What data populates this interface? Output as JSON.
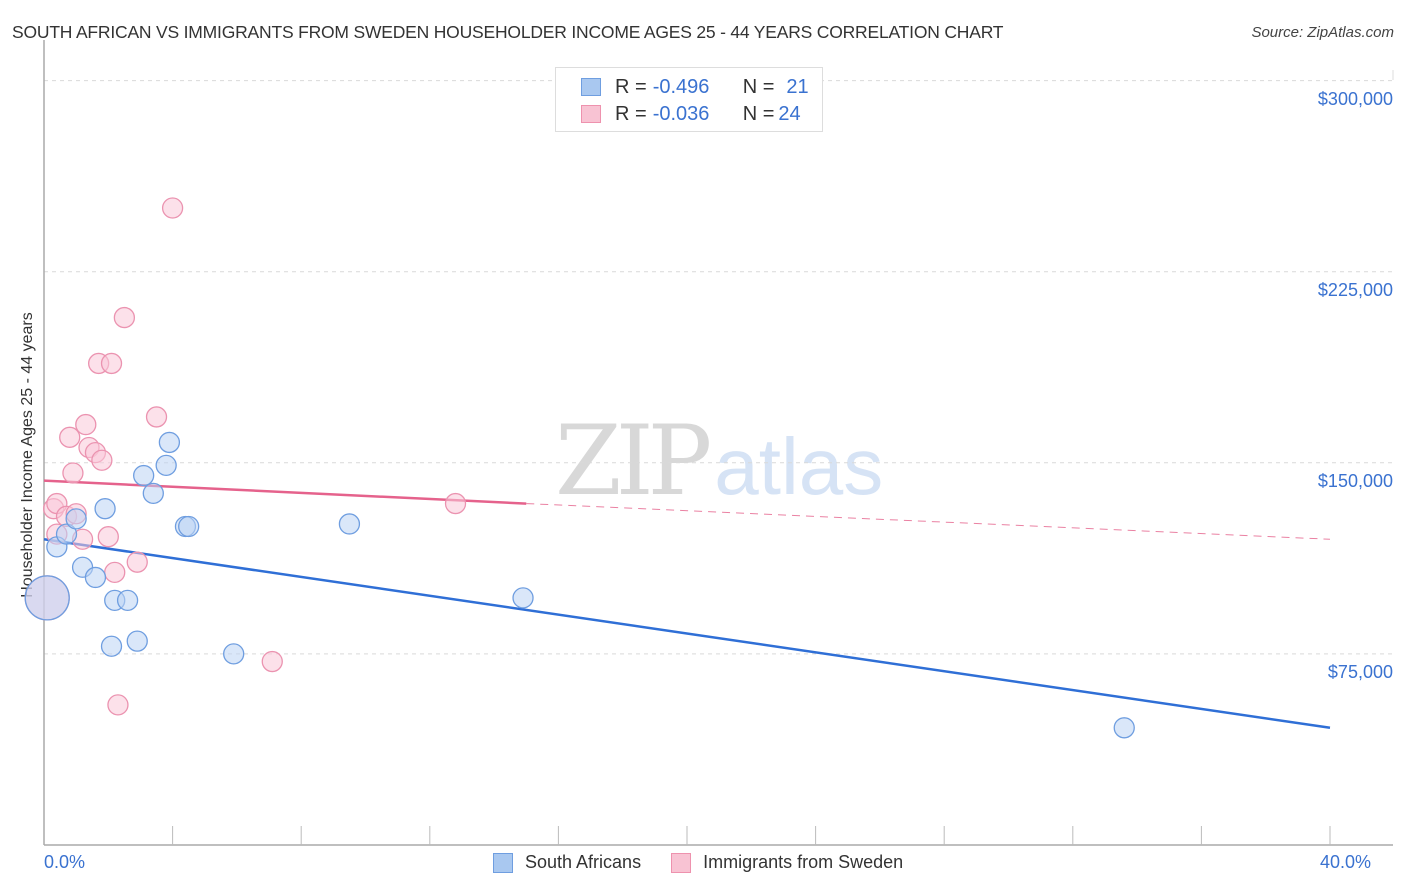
{
  "title": "SOUTH AFRICAN VS IMMIGRANTS FROM SWEDEN HOUSEHOLDER INCOME AGES 25 - 44 YEARS CORRELATION CHART",
  "source": "Source: ZipAtlas.com",
  "watermark": {
    "zip": "ZIP",
    "atlas": "atlas"
  },
  "legend": {
    "rows": [
      {
        "r_label": "R = ",
        "r_value": "-0.496",
        "n_label": "N = ",
        "n_value": "21",
        "color": "#a9c8f0",
        "border": "#6f9ee0"
      },
      {
        "r_label": "R = ",
        "r_value": "-0.036",
        "n_label": "N = ",
        "n_value": "24",
        "color": "#f8c3d3",
        "border": "#ee92ae"
      }
    ]
  },
  "colors": {
    "blue_fill": "#bcd4f4",
    "blue_stroke": "#6f9ee0",
    "blue_line": "#2f6fd6",
    "pink_fill": "#f9c9d8",
    "pink_stroke": "#eb93b0",
    "pink_line": "#e5628c",
    "tick_text": "#3a72d0"
  },
  "chart_data": {
    "type": "scatter",
    "title": "SOUTH AFRICAN VS IMMIGRANTS FROM SWEDEN HOUSEHOLDER INCOME AGES 25 - 44 YEARS CORRELATION CHART",
    "xlabel": "",
    "ylabel": "Householder Income Ages 25 - 44 years",
    "xlim": [
      0,
      40
    ],
    "ylim": [
      0,
      310000
    ],
    "x_tick_labels": [
      "0.0%",
      "40.0%"
    ],
    "y_tick_labels": [
      "$75,000",
      "$150,000",
      "$225,000",
      "$300,000"
    ],
    "y_ticks": [
      75000,
      150000,
      225000,
      300000
    ],
    "grid": true,
    "legend_position": "bottom",
    "series": [
      {
        "name": "South Africans",
        "r": -0.496,
        "n": 21,
        "points": [
          {
            "x": 0.1,
            "y": 97000,
            "size": "large"
          },
          {
            "x": 0.4,
            "y": 117000
          },
          {
            "x": 0.7,
            "y": 122000
          },
          {
            "x": 1.0,
            "y": 128000
          },
          {
            "x": 1.2,
            "y": 109000
          },
          {
            "x": 1.6,
            "y": 105000
          },
          {
            "x": 1.9,
            "y": 132000
          },
          {
            "x": 2.1,
            "y": 78000
          },
          {
            "x": 2.2,
            "y": 96000
          },
          {
            "x": 2.6,
            "y": 96000
          },
          {
            "x": 2.9,
            "y": 80000
          },
          {
            "x": 3.1,
            "y": 145000
          },
          {
            "x": 3.4,
            "y": 138000
          },
          {
            "x": 3.8,
            "y": 149000
          },
          {
            "x": 3.9,
            "y": 158000
          },
          {
            "x": 4.4,
            "y": 125000
          },
          {
            "x": 4.5,
            "y": 125000
          },
          {
            "x": 5.9,
            "y": 75000
          },
          {
            "x": 9.5,
            "y": 126000
          },
          {
            "x": 14.9,
            "y": 97000
          },
          {
            "x": 33.6,
            "y": 46000
          }
        ],
        "trend": {
          "x0": 0,
          "y0": 120000,
          "x1": 40,
          "y1": 46000,
          "style": "solid"
        }
      },
      {
        "name": "Immigrants from Sweden",
        "r": -0.036,
        "n": 24,
        "points": [
          {
            "x": 0.1,
            "y": 97000,
            "size": "large"
          },
          {
            "x": 0.3,
            "y": 132000
          },
          {
            "x": 0.4,
            "y": 134000
          },
          {
            "x": 0.4,
            "y": 122000
          },
          {
            "x": 0.7,
            "y": 129000
          },
          {
            "x": 0.8,
            "y": 160000
          },
          {
            "x": 0.9,
            "y": 146000
          },
          {
            "x": 1.0,
            "y": 130000
          },
          {
            "x": 1.2,
            "y": 120000
          },
          {
            "x": 1.3,
            "y": 165000
          },
          {
            "x": 1.4,
            "y": 156000
          },
          {
            "x": 1.6,
            "y": 154000
          },
          {
            "x": 1.7,
            "y": 189000
          },
          {
            "x": 1.8,
            "y": 151000
          },
          {
            "x": 2.0,
            "y": 121000
          },
          {
            "x": 2.1,
            "y": 189000
          },
          {
            "x": 2.2,
            "y": 107000
          },
          {
            "x": 2.3,
            "y": 55000
          },
          {
            "x": 2.5,
            "y": 207000
          },
          {
            "x": 2.9,
            "y": 111000
          },
          {
            "x": 3.5,
            "y": 168000
          },
          {
            "x": 4.0,
            "y": 250000
          },
          {
            "x": 7.1,
            "y": 72000
          },
          {
            "x": 12.8,
            "y": 134000
          }
        ],
        "trend": {
          "x0": 0,
          "y0": 143000,
          "x_solid_end": 15,
          "y_solid_end": 134000,
          "x1": 40,
          "y1": 120000,
          "style": "solid-then-dashed"
        }
      }
    ]
  },
  "axis": {
    "x_min_label": "0.0%",
    "x_max_label": "40.0%",
    "y_labels": [
      {
        "label": "$300,000",
        "value": 300000
      },
      {
        "label": "$225,000",
        "value": 225000
      },
      {
        "label": "$150,000",
        "value": 150000
      },
      {
        "label": "$75,000",
        "value": 75000
      }
    ]
  },
  "bottom_legend": {
    "items": [
      {
        "label": "South Africans"
      },
      {
        "label": "Immigrants from Sweden"
      }
    ]
  }
}
